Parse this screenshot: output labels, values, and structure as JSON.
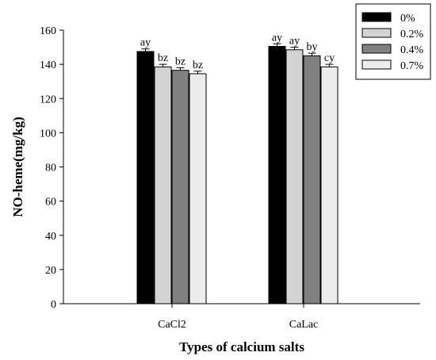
{
  "chart_data": {
    "type": "bar",
    "title": "",
    "xlabel": "Types of calcium salts",
    "ylabel": "NO-heme(mg/kg)",
    "ylim": [
      0,
      160
    ],
    "yticks": [
      0,
      20,
      40,
      60,
      80,
      100,
      120,
      140,
      160
    ],
    "categories": [
      "CaCl2",
      "CaLac"
    ],
    "legend_position": "top-right",
    "series": [
      {
        "name": "0%",
        "color": "#000000",
        "values": [
          147.5,
          150.5
        ],
        "errors": [
          1.5,
          1.5
        ],
        "labels": [
          "ay",
          "ay"
        ]
      },
      {
        "name": "0.2%",
        "color": "#d3d3d3",
        "values": [
          138.5,
          148.5
        ],
        "errors": [
          1.5,
          1.5
        ],
        "labels": [
          "bz",
          "ay"
        ]
      },
      {
        "name": "0.4%",
        "color": "#808080",
        "values": [
          136.5,
          145.0
        ],
        "errors": [
          1.5,
          1.5
        ],
        "labels": [
          "bz",
          "by"
        ]
      },
      {
        "name": "0.7%",
        "color": "#ececec",
        "values": [
          134.5,
          138.5
        ],
        "errors": [
          1.5,
          1.5
        ],
        "labels": [
          "bz",
          "cy"
        ]
      }
    ]
  }
}
